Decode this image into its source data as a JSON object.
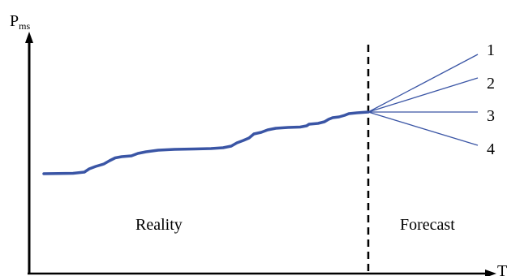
{
  "axes": {
    "y_label_main": "P",
    "y_label_sub": "ms",
    "x_label": "T"
  },
  "regions": {
    "left_label": "Reality",
    "right_label": "Forecast"
  },
  "forecast_lines": [
    {
      "label": "1"
    },
    {
      "label": "2"
    },
    {
      "label": "3"
    },
    {
      "label": "4"
    }
  ],
  "colors": {
    "reality_curve": "#3a55a5",
    "forecast_lines": "#3a55a5",
    "axes": "#000000"
  }
}
